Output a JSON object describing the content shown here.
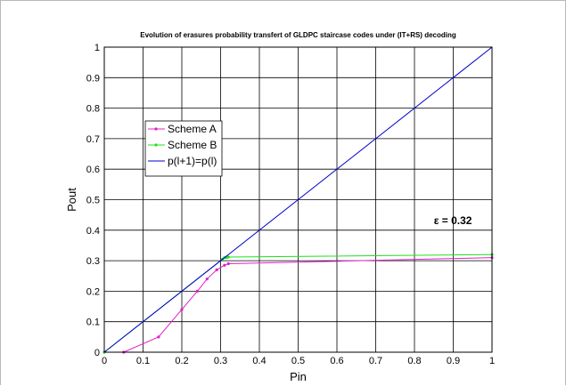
{
  "chart_data": {
    "type": "line",
    "title": "Evolution of erasures probability transfert of GLDPC staircase codes under (IT+RS) decoding",
    "xlabel": "Pin",
    "ylabel": "Pout",
    "xlim": [
      0,
      1
    ],
    "ylim": [
      0,
      1
    ],
    "xticks": [
      "0",
      "0.1",
      "0.2",
      "0.3",
      "0.4",
      "0.5",
      "0.6",
      "0.7",
      "0.8",
      "0.9",
      "1"
    ],
    "yticks": [
      "0",
      "0.1",
      "0.2",
      "0.3",
      "0.4",
      "0.5",
      "0.6",
      "0.7",
      "0.8",
      "0.9",
      "1"
    ],
    "grid": true,
    "legend_position": "upper-left",
    "annotation": "ε = 0.32",
    "annotation_at": [
      0.85,
      0.42
    ],
    "series": [
      {
        "name": "Scheme A",
        "color": "#e020c8",
        "marker": "point",
        "x": [
          0,
          0.05,
          0.14,
          0.2,
          0.24,
          0.265,
          0.29,
          0.31,
          0.32,
          1
        ],
        "y": [
          0,
          0.0,
          0.05,
          0.14,
          0.2,
          0.24,
          0.27,
          0.285,
          0.29,
          0.31
        ]
      },
      {
        "name": "Scheme B",
        "color": "#20e020",
        "marker": "point",
        "x": [
          0,
          0.305,
          0.31,
          0.315,
          0.32,
          1
        ],
        "y": [
          0,
          0.305,
          0.31,
          0.31,
          0.312,
          0.32
        ]
      },
      {
        "name": "p(l+1)=p(l)",
        "color": "#0000cc",
        "marker": "none",
        "x": [
          0,
          1
        ],
        "y": [
          0,
          1
        ]
      }
    ]
  }
}
